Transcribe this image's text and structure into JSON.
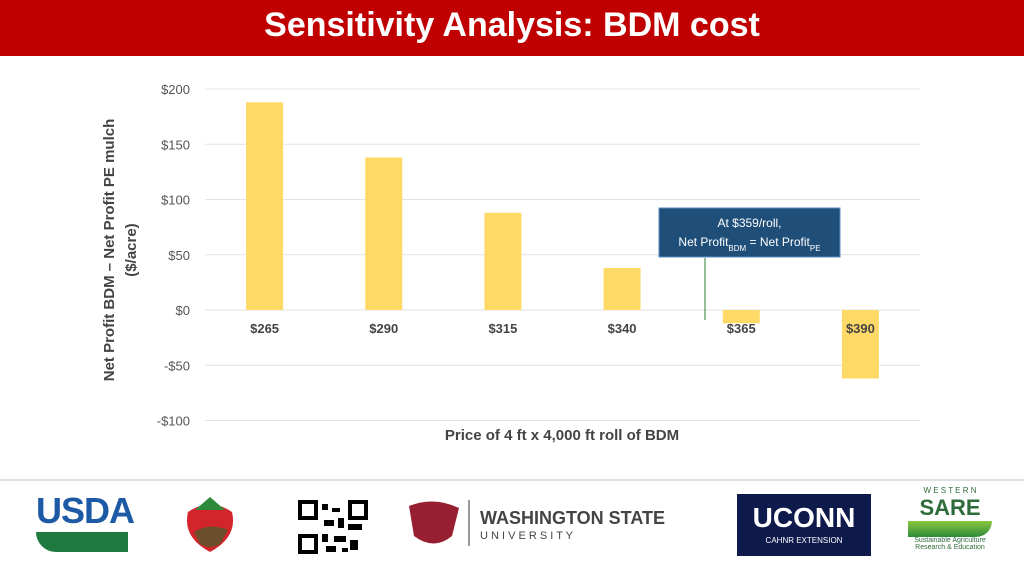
{
  "title": "Sensitivity Analysis: BDM cost",
  "chart_data": {
    "type": "bar",
    "categories": [
      "$265",
      "$290",
      "$315",
      "$340",
      "$365",
      "$390"
    ],
    "values": [
      188,
      138,
      88,
      38,
      -12,
      -62
    ],
    "color": "#ffd966",
    "ylim": [
      -100,
      200
    ],
    "yticks": [
      {
        "value": -100,
        "label": "-$100"
      },
      {
        "value": -50,
        "label": "-$50"
      },
      {
        "value": 0,
        "label": "$0"
      },
      {
        "value": 50,
        "label": "$50"
      },
      {
        "value": 100,
        "label": "$100"
      },
      {
        "value": 150,
        "label": "$150"
      },
      {
        "value": 200,
        "label": "$200"
      }
    ],
    "grid": true,
    "ylabel": [
      "Net Profit BDM – Net Profit PE mulch",
      "($/acre)"
    ],
    "xlabel": "Price of 4 ft x 4,000 ft roll of BDM",
    "annotation": {
      "line1": "At $359/roll,",
      "line2": [
        "Net Profit",
        "BDM",
        " = Net Profit",
        "PE"
      ]
    }
  },
  "logos": {
    "usda": "USDA",
    "wsu": [
      "WASHINGTON STATE",
      "U N I V E R S I T Y"
    ],
    "uconn": [
      "UCONN",
      "CAHNR EXTENSION"
    ],
    "sare": [
      "W E S T E R N",
      "SARE",
      "Sustainable Agriculture",
      "Research & Education"
    ]
  }
}
